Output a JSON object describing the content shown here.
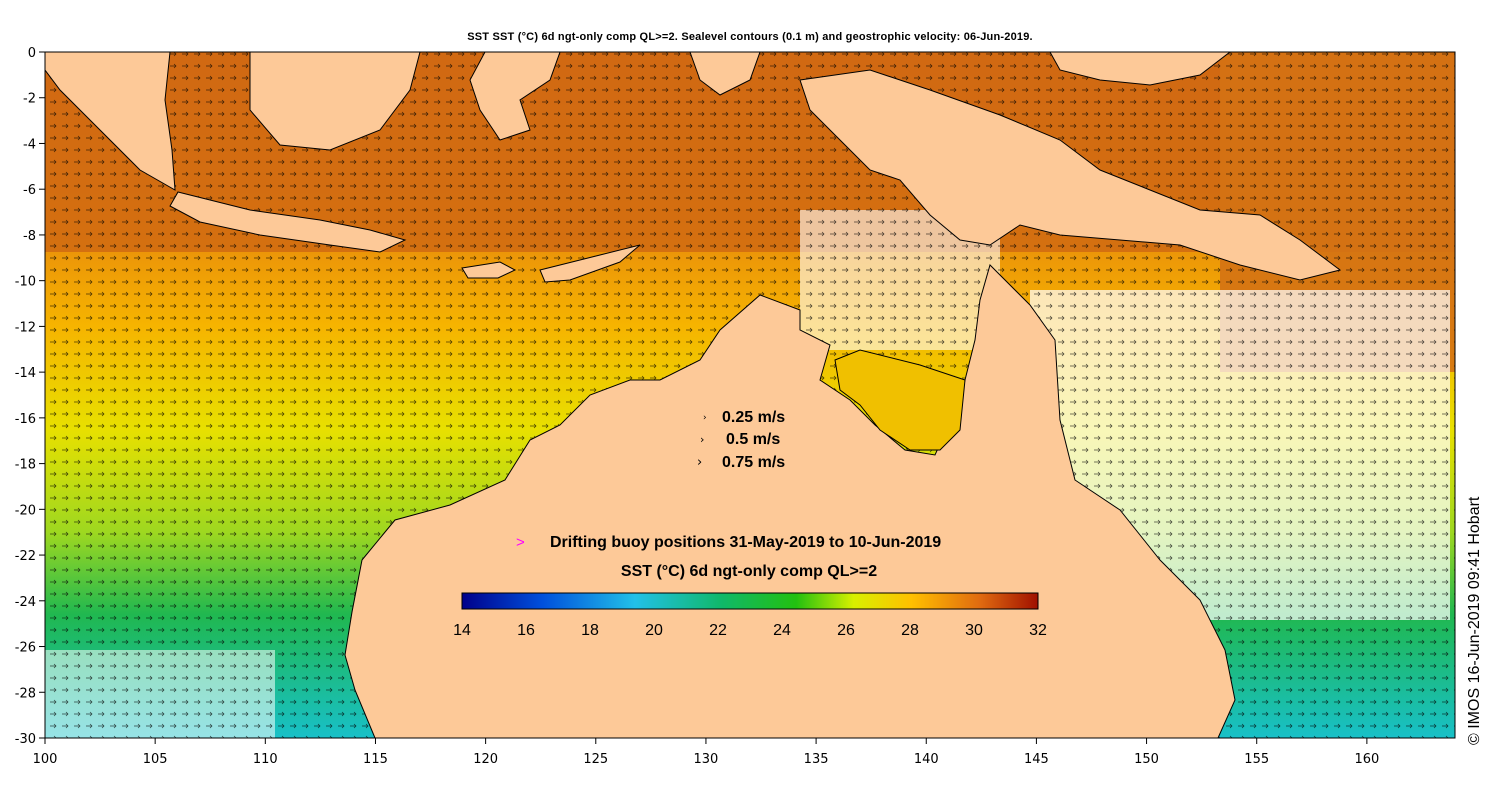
{
  "title": "SST SST (°C) 6d ngt-only comp QL>=2. Sealevel contours (0.1 m) and geostrophic velocity: 06-Jun-2019.",
  "credit": "© IMOS 16-Jun-2019 09:41 Hobart",
  "x_ticks": [
    "100",
    "105",
    "110",
    "115",
    "120",
    "125",
    "130",
    "135",
    "140",
    "145",
    "150",
    "155",
    "160"
  ],
  "y_ticks": [
    "0",
    "-2",
    "-4",
    "-6",
    "-8",
    "-10",
    "-12",
    "-14",
    "-16",
    "-18",
    "-20",
    "-22",
    "-24",
    "-26",
    "-28",
    "-30"
  ],
  "x_range": [
    100,
    164
  ],
  "y_range": [
    -30,
    0
  ],
  "velocity_legend": {
    "items": [
      "0.25 m/s",
      "0.5 m/s",
      "0.75 m/s"
    ]
  },
  "buoy_legend": {
    "symbol": ">",
    "label": "Drifting buoy positions 31-May-2019 to 10-Jun-2019",
    "color": "#ff00ff"
  },
  "colorbar": {
    "title": "SST (°C) 6d ngt-only comp QL>=2",
    "min": 14,
    "max": 32,
    "ticks": [
      "14",
      "16",
      "18",
      "20",
      "22",
      "24",
      "26",
      "28",
      "30",
      "32"
    ]
  },
  "colors": {
    "land": "#fdc998",
    "ocean_warm": "#d86a10",
    "ocean_mid": "#f5a800",
    "ocean_cool": "#22b83a",
    "cloud": "#ffffff"
  }
}
